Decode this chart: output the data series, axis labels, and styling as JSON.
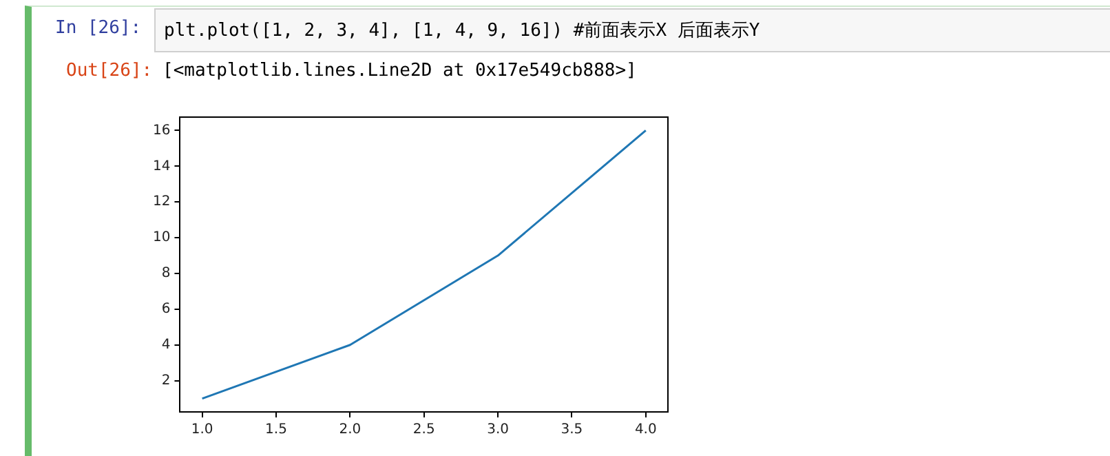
{
  "chart_data": {
    "type": "line",
    "annotations": [
      "In [26]:",
      "plt.plot([1, 2, 3, 4], [1, 4, 9, 16])  #前面表示X  后面表示Y",
      "Out[26]:",
      "[<matplotlib.lines.Line2D at 0x17e549cb888>]"
    ],
    "x": [
      1,
      2,
      3,
      4
    ],
    "series": [
      {
        "color": "#1f77b4",
        "values": [
          1,
          4,
          9,
          16
        ]
      }
    ],
    "xlim": [
      0.85,
      4.15
    ],
    "ylim": [
      0.25,
      16.75
    ],
    "xticks": [
      {
        "value": 1,
        "label": "1.0"
      },
      {
        "value": 1.5,
        "label": "1.5"
      },
      {
        "value": 2,
        "label": "2.0"
      },
      {
        "value": 2.5,
        "label": "2.5"
      },
      {
        "value": 3,
        "label": "3.0"
      },
      {
        "value": 3.5,
        "label": "3.5"
      },
      {
        "value": 4,
        "label": "4.0"
      }
    ],
    "yticks": [
      2,
      4,
      6,
      8,
      10,
      12,
      14,
      16
    ],
    "grid": false,
    "legend": false,
    "marker": "none",
    "line_style": "solid"
  }
}
